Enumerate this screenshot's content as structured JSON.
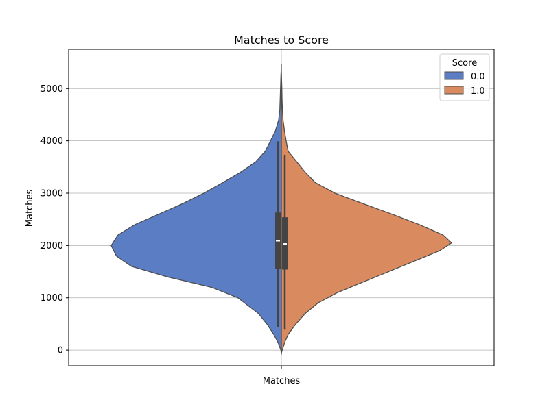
{
  "chart_data": {
    "type": "violin",
    "title": "Matches to Score",
    "xlabel": "",
    "ylabel": "Matches",
    "categories": [
      "Matches"
    ],
    "ylim": [
      -300,
      5750
    ],
    "yticks": [
      0,
      1000,
      2000,
      3000,
      4000,
      5000
    ],
    "ytick_labels": [
      "0",
      "1000",
      "2000",
      "3000",
      "4000",
      "5000"
    ],
    "grid": true,
    "split": true,
    "legend": {
      "title": "Score",
      "placement": "top-right"
    },
    "series": [
      {
        "name": "0.0",
        "color": "#5a7dc3",
        "density": [
          [
            -80,
            0.0
          ],
          [
            0,
            0.003
          ],
          [
            150,
            0.02
          ],
          [
            300,
            0.045
          ],
          [
            500,
            0.085
          ],
          [
            700,
            0.135
          ],
          [
            1000,
            0.255
          ],
          [
            1200,
            0.41
          ],
          [
            1400,
            0.67
          ],
          [
            1600,
            0.88
          ],
          [
            1800,
            0.97
          ],
          [
            2000,
            1.0
          ],
          [
            2200,
            0.96
          ],
          [
            2400,
            0.86
          ],
          [
            2600,
            0.72
          ],
          [
            2800,
            0.58
          ],
          [
            3000,
            0.455
          ],
          [
            3200,
            0.345
          ],
          [
            3400,
            0.24
          ],
          [
            3600,
            0.15
          ],
          [
            3800,
            0.095
          ],
          [
            4000,
            0.064
          ],
          [
            4200,
            0.034
          ],
          [
            4400,
            0.016
          ],
          [
            4600,
            0.009
          ],
          [
            4800,
            0.007
          ],
          [
            5000,
            0.005
          ],
          [
            5300,
            0.002
          ],
          [
            5470,
            0.0
          ]
        ],
        "box": {
          "q1": 1550,
          "median": 2090,
          "q3": 2630,
          "whisker_low": 440,
          "whisker_high": 3990
        }
      },
      {
        "name": "1.0",
        "color": "#d98a5f",
        "density": [
          [
            -60,
            0.0
          ],
          [
            0,
            0.005
          ],
          [
            150,
            0.02
          ],
          [
            300,
            0.04
          ],
          [
            500,
            0.085
          ],
          [
            700,
            0.14
          ],
          [
            900,
            0.215
          ],
          [
            1100,
            0.33
          ],
          [
            1300,
            0.48
          ],
          [
            1500,
            0.63
          ],
          [
            1700,
            0.78
          ],
          [
            1900,
            0.93
          ],
          [
            2050,
            1.0
          ],
          [
            2200,
            0.95
          ],
          [
            2400,
            0.81
          ],
          [
            2600,
            0.65
          ],
          [
            2800,
            0.48
          ],
          [
            3000,
            0.315
          ],
          [
            3200,
            0.2
          ],
          [
            3400,
            0.14
          ],
          [
            3600,
            0.09
          ],
          [
            3800,
            0.04
          ],
          [
            4000,
            0.028
          ],
          [
            4200,
            0.018
          ],
          [
            4400,
            0.01
          ],
          [
            4600,
            0.006
          ],
          [
            4800,
            0.004
          ],
          [
            5000,
            0.003
          ],
          [
            5200,
            0.001
          ],
          [
            5300,
            0.0
          ]
        ],
        "box": {
          "q1": 1540,
          "median": 2030,
          "q3": 2540,
          "whisker_low": 390,
          "whisker_high": 3730
        }
      }
    ]
  }
}
